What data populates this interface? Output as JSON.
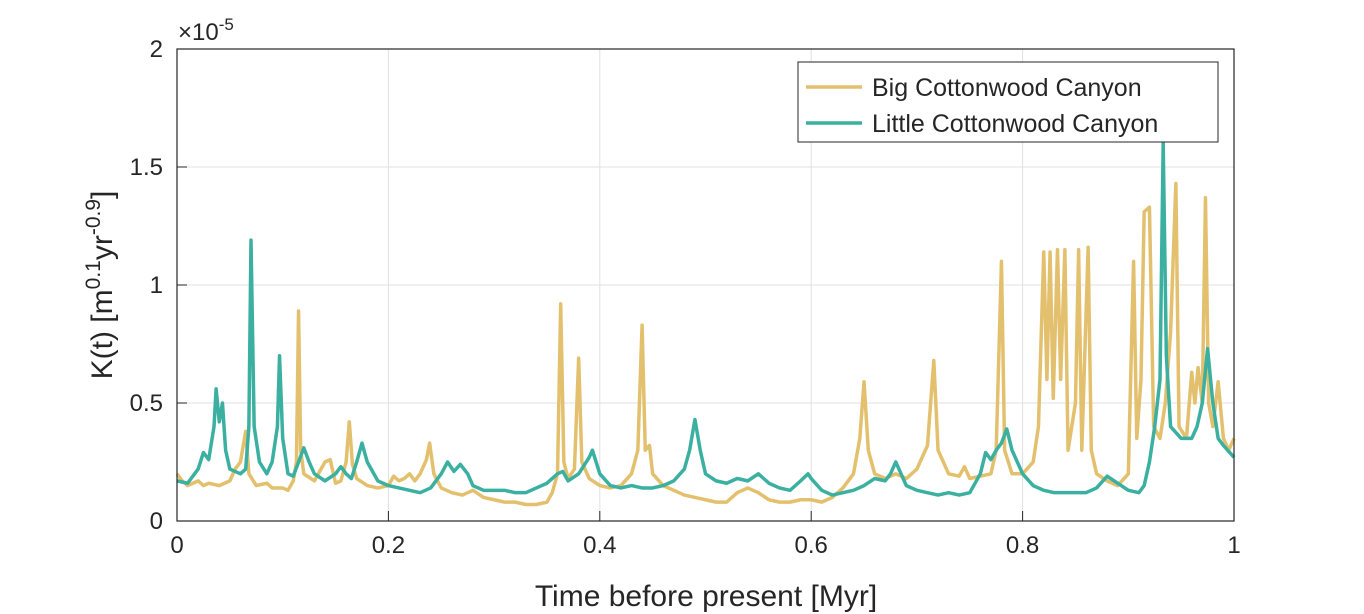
{
  "chart_data": {
    "type": "line",
    "xlabel": "Time before present [Myr]",
    "ylabel": [
      {
        "text": "K(t) [m"
      },
      {
        "text": "0.1",
        "sup": true
      },
      {
        "text": "yr"
      },
      {
        "text": "-0.9",
        "sup": true
      },
      {
        "text": "]"
      }
    ],
    "y_multiplier": {
      "base": "×10",
      "exponent": "-5"
    },
    "xlim": [
      0,
      1
    ],
    "ylim": [
      0,
      2
    ],
    "xticks": [
      0,
      0.2,
      0.4,
      0.6,
      0.8,
      1
    ],
    "yticks": [
      0,
      0.5,
      1,
      1.5,
      2
    ],
    "grid": true,
    "legend": "upper right",
    "series": [
      {
        "name": "Big Cottonwood Canyon",
        "color": "#e3c06d",
        "x": [
          0,
          0.005,
          0.01,
          0.02,
          0.025,
          0.03,
          0.04,
          0.05,
          0.055,
          0.06,
          0.065,
          0.068,
          0.075,
          0.085,
          0.09,
          0.1,
          0.105,
          0.11,
          0.113,
          0.115,
          0.117,
          0.12,
          0.13,
          0.14,
          0.145,
          0.15,
          0.155,
          0.16,
          0.163,
          0.166,
          0.17,
          0.18,
          0.19,
          0.2,
          0.205,
          0.21,
          0.215,
          0.22,
          0.225,
          0.23,
          0.236,
          0.239,
          0.243,
          0.25,
          0.26,
          0.27,
          0.28,
          0.29,
          0.3,
          0.31,
          0.32,
          0.33,
          0.34,
          0.35,
          0.355,
          0.36,
          0.363,
          0.366,
          0.37,
          0.376,
          0.38,
          0.383,
          0.39,
          0.4,
          0.41,
          0.42,
          0.43,
          0.436,
          0.44,
          0.443,
          0.447,
          0.45,
          0.46,
          0.47,
          0.48,
          0.49,
          0.5,
          0.51,
          0.52,
          0.53,
          0.54,
          0.55,
          0.56,
          0.57,
          0.58,
          0.59,
          0.6,
          0.61,
          0.62,
          0.63,
          0.64,
          0.646,
          0.65,
          0.654,
          0.66,
          0.67,
          0.68,
          0.69,
          0.7,
          0.71,
          0.716,
          0.72,
          0.73,
          0.74,
          0.745,
          0.75,
          0.76,
          0.77,
          0.775,
          0.78,
          0.783,
          0.79,
          0.8,
          0.81,
          0.815,
          0.82,
          0.823,
          0.826,
          0.829,
          0.833,
          0.836,
          0.84,
          0.843,
          0.85,
          0.853,
          0.856,
          0.862,
          0.865,
          0.87,
          0.88,
          0.89,
          0.9,
          0.905,
          0.908,
          0.912,
          0.915,
          0.92,
          0.924,
          0.93,
          0.935,
          0.94,
          0.945,
          0.948,
          0.955,
          0.96,
          0.963,
          0.966,
          0.97,
          0.973,
          0.976,
          0.98,
          0.985,
          0.99,
          0.995,
          1
        ],
        "values": [
          0.2,
          0.17,
          0.15,
          0.17,
          0.15,
          0.16,
          0.15,
          0.17,
          0.22,
          0.25,
          0.38,
          0.2,
          0.15,
          0.16,
          0.14,
          0.14,
          0.13,
          0.17,
          0.25,
          0.89,
          0.3,
          0.2,
          0.17,
          0.25,
          0.26,
          0.16,
          0.17,
          0.25,
          0.42,
          0.24,
          0.18,
          0.15,
          0.14,
          0.15,
          0.19,
          0.17,
          0.18,
          0.2,
          0.17,
          0.2,
          0.26,
          0.33,
          0.2,
          0.14,
          0.12,
          0.11,
          0.13,
          0.1,
          0.09,
          0.08,
          0.08,
          0.07,
          0.07,
          0.08,
          0.12,
          0.2,
          0.92,
          0.25,
          0.18,
          0.22,
          0.69,
          0.25,
          0.18,
          0.15,
          0.14,
          0.15,
          0.2,
          0.3,
          0.83,
          0.3,
          0.32,
          0.2,
          0.15,
          0.13,
          0.11,
          0.1,
          0.09,
          0.08,
          0.08,
          0.12,
          0.14,
          0.12,
          0.09,
          0.08,
          0.08,
          0.09,
          0.09,
          0.08,
          0.1,
          0.14,
          0.2,
          0.35,
          0.59,
          0.3,
          0.2,
          0.18,
          0.2,
          0.18,
          0.22,
          0.32,
          0.68,
          0.3,
          0.2,
          0.19,
          0.23,
          0.18,
          0.19,
          0.2,
          0.3,
          1.1,
          0.3,
          0.2,
          0.2,
          0.25,
          0.4,
          1.14,
          0.6,
          1.14,
          0.52,
          1.15,
          0.6,
          1.15,
          0.3,
          0.5,
          1.15,
          0.3,
          1.16,
          0.3,
          0.2,
          0.17,
          0.15,
          0.2,
          1.1,
          0.35,
          0.6,
          1.31,
          1.33,
          0.4,
          0.35,
          0.5,
          0.8,
          1.43,
          0.4,
          0.35,
          0.63,
          0.5,
          0.65,
          0.5,
          1.37,
          0.5,
          0.4,
          0.59,
          0.35,
          0.3,
          0.35
        ]
      },
      {
        "name": "Little Cottonwood Canyon",
        "color": "#3bb0a1",
        "x": [
          0,
          0.01,
          0.02,
          0.025,
          0.03,
          0.035,
          0.037,
          0.04,
          0.043,
          0.046,
          0.05,
          0.06,
          0.065,
          0.068,
          0.07,
          0.073,
          0.078,
          0.085,
          0.09,
          0.095,
          0.097,
          0.1,
          0.105,
          0.11,
          0.115,
          0.12,
          0.125,
          0.13,
          0.14,
          0.15,
          0.155,
          0.16,
          0.165,
          0.17,
          0.175,
          0.18,
          0.19,
          0.2,
          0.21,
          0.22,
          0.23,
          0.24,
          0.25,
          0.256,
          0.262,
          0.268,
          0.275,
          0.28,
          0.29,
          0.3,
          0.31,
          0.32,
          0.33,
          0.34,
          0.35,
          0.36,
          0.365,
          0.37,
          0.38,
          0.39,
          0.393,
          0.4,
          0.41,
          0.42,
          0.43,
          0.44,
          0.45,
          0.46,
          0.47,
          0.48,
          0.485,
          0.49,
          0.495,
          0.5,
          0.51,
          0.52,
          0.53,
          0.54,
          0.55,
          0.56,
          0.57,
          0.58,
          0.59,
          0.597,
          0.6,
          0.61,
          0.62,
          0.63,
          0.64,
          0.65,
          0.66,
          0.67,
          0.675,
          0.68,
          0.685,
          0.69,
          0.7,
          0.71,
          0.72,
          0.73,
          0.74,
          0.75,
          0.76,
          0.765,
          0.77,
          0.775,
          0.78,
          0.785,
          0.79,
          0.8,
          0.81,
          0.82,
          0.83,
          0.84,
          0.85,
          0.86,
          0.87,
          0.88,
          0.89,
          0.9,
          0.91,
          0.915,
          0.92,
          0.925,
          0.93,
          0.933,
          0.936,
          0.94,
          0.95,
          0.96,
          0.965,
          0.97,
          0.975,
          0.98,
          0.985,
          0.99,
          1
        ],
        "values": [
          0.17,
          0.16,
          0.22,
          0.29,
          0.26,
          0.4,
          0.56,
          0.42,
          0.5,
          0.3,
          0.22,
          0.2,
          0.22,
          0.4,
          1.19,
          0.4,
          0.25,
          0.2,
          0.25,
          0.4,
          0.7,
          0.35,
          0.2,
          0.19,
          0.25,
          0.31,
          0.25,
          0.2,
          0.17,
          0.2,
          0.23,
          0.2,
          0.18,
          0.25,
          0.33,
          0.25,
          0.17,
          0.15,
          0.14,
          0.13,
          0.12,
          0.14,
          0.2,
          0.25,
          0.21,
          0.24,
          0.2,
          0.15,
          0.13,
          0.13,
          0.13,
          0.12,
          0.12,
          0.14,
          0.16,
          0.2,
          0.21,
          0.17,
          0.2,
          0.27,
          0.3,
          0.2,
          0.15,
          0.14,
          0.15,
          0.14,
          0.14,
          0.15,
          0.17,
          0.22,
          0.3,
          0.43,
          0.3,
          0.2,
          0.17,
          0.16,
          0.18,
          0.17,
          0.2,
          0.16,
          0.14,
          0.13,
          0.17,
          0.2,
          0.18,
          0.13,
          0.11,
          0.12,
          0.13,
          0.15,
          0.18,
          0.17,
          0.2,
          0.25,
          0.2,
          0.15,
          0.13,
          0.12,
          0.11,
          0.12,
          0.11,
          0.12,
          0.2,
          0.29,
          0.26,
          0.3,
          0.33,
          0.39,
          0.3,
          0.2,
          0.15,
          0.13,
          0.12,
          0.12,
          0.12,
          0.12,
          0.14,
          0.19,
          0.16,
          0.13,
          0.12,
          0.15,
          0.25,
          0.4,
          0.6,
          1.6,
          0.7,
          0.4,
          0.35,
          0.35,
          0.4,
          0.5,
          0.73,
          0.5,
          0.35,
          0.32,
          0.27
        ]
      }
    ]
  }
}
